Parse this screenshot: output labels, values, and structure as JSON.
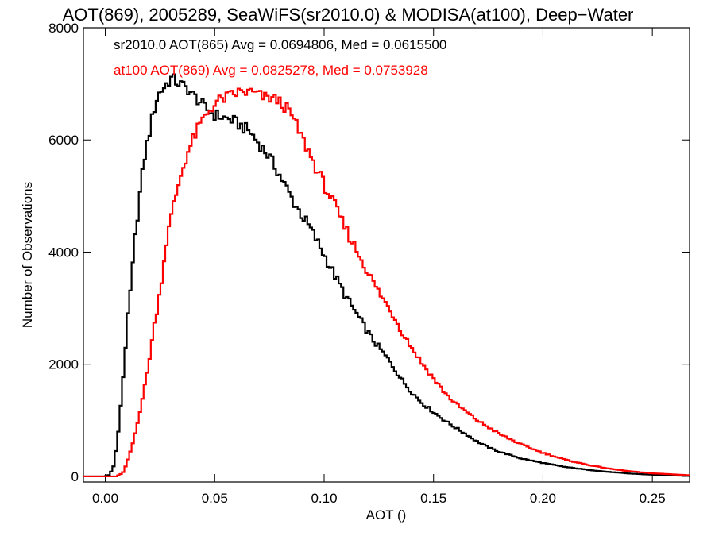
{
  "chart_data": {
    "type": "line",
    "title": "AOT(869), 2005289, SeaWiFS(sr2010.0) & MODISA(at100), Deep−Water",
    "xlabel": "AOT ()",
    "ylabel": "Number of Observations",
    "xlim": [
      -0.01,
      0.267
    ],
    "ylim": [
      -100,
      8000
    ],
    "grid": false,
    "step": true,
    "x_ticks": [
      0.0,
      0.05,
      0.1,
      0.15,
      0.2,
      0.25
    ],
    "x_tick_labels": [
      "0.00",
      "0.05",
      "0.10",
      "0.15",
      "0.20",
      "0.25"
    ],
    "y_ticks": [
      0,
      2000,
      4000,
      6000,
      8000
    ],
    "y_tick_labels": [
      "0",
      "2000",
      "4000",
      "6000",
      "8000"
    ],
    "annotations": [
      {
        "text": "sr2010.0 AOT(865) Avg = 0.0694806, Med = 0.0615500",
        "color": "#000000"
      },
      {
        "text": "at100 AOT(869) Avg = 0.0825278, Med = 0.0753928",
        "color": "#ff0000"
      }
    ],
    "series": [
      {
        "color": "#000000",
        "x": [
          -0.01,
          0.0,
          0.002,
          0.004,
          0.006,
          0.008,
          0.01,
          0.012,
          0.014,
          0.016,
          0.018,
          0.02,
          0.022,
          0.024,
          0.026,
          0.028,
          0.03,
          0.032,
          0.034,
          0.036,
          0.038,
          0.04,
          0.043,
          0.046,
          0.05,
          0.054,
          0.058,
          0.062,
          0.066,
          0.07,
          0.074,
          0.078,
          0.082,
          0.086,
          0.09,
          0.094,
          0.098,
          0.102,
          0.106,
          0.11,
          0.114,
          0.118,
          0.122,
          0.126,
          0.13,
          0.135,
          0.14,
          0.145,
          0.15,
          0.155,
          0.16,
          0.165,
          0.17,
          0.175,
          0.18,
          0.19,
          0.2,
          0.21,
          0.22,
          0.23,
          0.24,
          0.25,
          0.26,
          0.267
        ],
        "y": [
          0,
          0,
          30,
          200,
          800,
          1700,
          2700,
          3500,
          4400,
          5100,
          5700,
          6100,
          6500,
          6800,
          6900,
          7000,
          7100,
          7050,
          7000,
          6950,
          6900,
          6800,
          6700,
          6550,
          6450,
          6400,
          6350,
          6250,
          6150,
          5950,
          5750,
          5500,
          5200,
          4900,
          4650,
          4400,
          4100,
          3800,
          3500,
          3200,
          2950,
          2700,
          2450,
          2250,
          2050,
          1750,
          1500,
          1300,
          1150,
          1000,
          870,
          750,
          620,
          520,
          440,
          320,
          240,
          170,
          120,
          80,
          50,
          30,
          15,
          10
        ]
      },
      {
        "color": "#ff0000",
        "x": [
          -0.01,
          0.0,
          0.005,
          0.008,
          0.01,
          0.013,
          0.016,
          0.019,
          0.022,
          0.025,
          0.028,
          0.031,
          0.034,
          0.037,
          0.04,
          0.043,
          0.046,
          0.049,
          0.052,
          0.055,
          0.058,
          0.061,
          0.064,
          0.067,
          0.07,
          0.073,
          0.076,
          0.079,
          0.082,
          0.085,
          0.088,
          0.091,
          0.094,
          0.097,
          0.1,
          0.104,
          0.108,
          0.112,
          0.116,
          0.12,
          0.124,
          0.128,
          0.132,
          0.136,
          0.14,
          0.145,
          0.15,
          0.155,
          0.16,
          0.165,
          0.17,
          0.175,
          0.18,
          0.19,
          0.2,
          0.21,
          0.22,
          0.23,
          0.24,
          0.25,
          0.26,
          0.267
        ],
        "y": [
          0,
          0,
          0,
          60,
          250,
          650,
          1200,
          1800,
          2600,
          3300,
          4200,
          4800,
          5300,
          5700,
          6000,
          6250,
          6450,
          6600,
          6700,
          6750,
          6800,
          6850,
          6850,
          6850,
          6800,
          6750,
          6750,
          6700,
          6600,
          6450,
          6200,
          5950,
          5700,
          5450,
          5200,
          4900,
          4550,
          4250,
          3950,
          3650,
          3350,
          3100,
          2850,
          2550,
          2300,
          2000,
          1750,
          1500,
          1300,
          1150,
          1000,
          880,
          760,
          570,
          420,
          300,
          210,
          140,
          90,
          55,
          35,
          20
        ]
      }
    ]
  }
}
